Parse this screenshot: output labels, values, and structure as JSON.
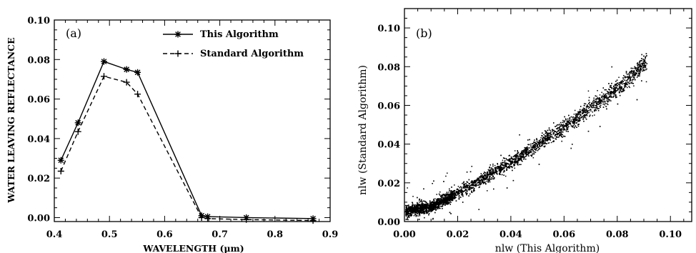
{
  "chart_data": [
    {
      "type": "line",
      "panel_label": "(a)",
      "xlabel": "WAVELENGTH (μm)",
      "ylabel": "WATER LEAVING REFLECTANCE",
      "xlim": [
        0.4,
        0.9
      ],
      "ylim": [
        -0.002,
        0.1
      ],
      "xticks": [
        "0.4",
        "0.5",
        "0.6",
        "0.7",
        "0.8",
        "0.9"
      ],
      "yticks": [
        "0.00",
        "0.02",
        "0.04",
        "0.06",
        "0.08",
        "0.10"
      ],
      "legend_position": "top-right",
      "series": [
        {
          "name": "This Algorithm",
          "style": "solid",
          "marker": "*",
          "x": [
            0.412,
            0.443,
            0.49,
            0.531,
            0.551,
            0.667,
            0.678,
            0.748,
            0.869
          ],
          "y": [
            0.029,
            0.048,
            0.079,
            0.075,
            0.0735,
            0.001,
            0.0005,
            0.0,
            -0.0005
          ]
        },
        {
          "name": "Standard Algorithm",
          "style": "dashed",
          "marker": "+",
          "x": [
            0.412,
            0.443,
            0.49,
            0.531,
            0.551,
            0.667,
            0.678,
            0.748,
            0.869
          ],
          "y": [
            0.0235,
            0.0435,
            0.0715,
            0.0685,
            0.0625,
            0.0,
            -0.0005,
            -0.001,
            -0.0015
          ]
        }
      ]
    },
    {
      "type": "scatter",
      "panel_label": "(b)",
      "xlabel": "nlw (This Algorithm)",
      "ylabel": "nlw (Standard Algorithm)",
      "xlim": [
        0.0,
        0.108
      ],
      "ylim": [
        0.0,
        0.11
      ],
      "xticks": [
        "0.00",
        "0.02",
        "0.04",
        "0.06",
        "0.08",
        "0.10"
      ],
      "yticks": [
        "0.00",
        "0.02",
        "0.04",
        "0.06",
        "0.08",
        "0.10"
      ],
      "density_trend": {
        "x": [
          0.0,
          0.01,
          0.02,
          0.04,
          0.06,
          0.08,
          0.091
        ],
        "y": [
          0.0055,
          0.008,
          0.015,
          0.031,
          0.049,
          0.069,
          0.083
        ]
      }
    }
  ]
}
